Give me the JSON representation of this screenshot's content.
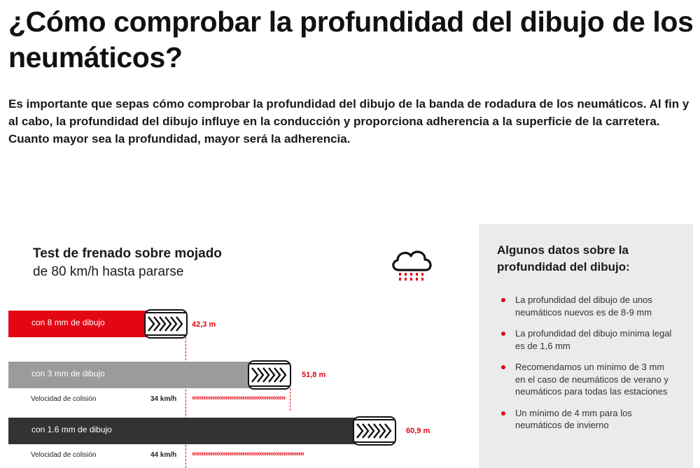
{
  "article": {
    "title": "¿Cómo comprobar la profundidad del dibujo de los neumáticos?",
    "intro": "Es importante que sepas cómo comprobar la profundidad del dibujo de la banda de rodadura de los neumáticos. Al fin y al cabo, la profundidad del dibujo influye en la conducción y proporciona adherencia a la superficie de la carretera. Cuanto mayor sea la profundidad, mayor será la adherencia."
  },
  "infographic": {
    "title": "Test de frenado sobre mojado",
    "subtitle": "de 80 km/h hasta pararse",
    "icon": "rain-cloud-icon",
    "bars": [
      {
        "label": "con 8 mm de dibujo",
        "distance": "42,3 m",
        "color": "#e30613"
      },
      {
        "label": "con 3 mm de dibujo",
        "distance": "51,8 m",
        "color": "#9b9b9b",
        "collision_label": "Velocidad de colisión",
        "collision_speed": "34 km/h"
      },
      {
        "label": "con 1.6 mm de dibujo",
        "distance": "60,9 m",
        "color": "#333333",
        "collision_label": "Velocidad de colisión",
        "collision_speed": "44 km/h"
      }
    ],
    "accent_color": "#e30613",
    "arrow_glyphs": "››››››››››››››››››››››››››››››››››››››››››››››››››››››››››››"
  },
  "info_panel": {
    "title": "Algunos datos sobre la profundidad del dibujo:",
    "items": [
      "La profundidad del dibujo de unos neumáticos nuevos es de 8-9 mm",
      "La profundidad del dibujo mínima legal es de 1,6 mm",
      "Recomendamos un mínimo de 3 mm en el caso de neumáticos de verano y neumáticos para todas las estaciones",
      "Un mínimo de 4 mm para los neumáticos de invierno"
    ]
  }
}
